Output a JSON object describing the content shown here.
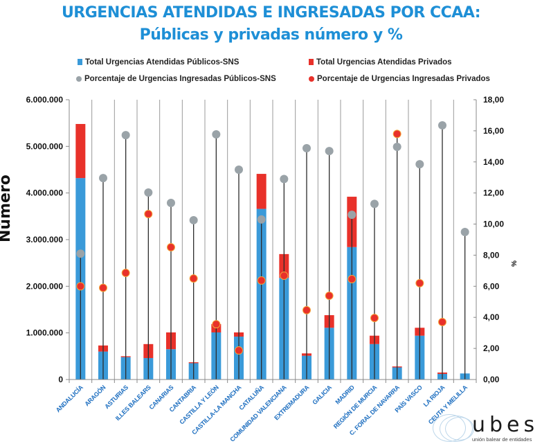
{
  "title_line1": "URGENCIAS ATENDIDAS E INGRESADAS POR CCAA:",
  "title_line2": "Públicas y privadas número y %",
  "logo": {
    "word": "ubes",
    "subtitle": "unión balear de entidades"
  },
  "colors": {
    "public_bar": "#3a9ad9",
    "private_bar": "#e8312a",
    "public_pct": "#9aa3a8",
    "private_pct": "#e8312a",
    "axis_label": "#1e6fc0",
    "title": "#1e8fd6"
  },
  "chart_data": {
    "type": "bar",
    "stacked": true,
    "title": "URGENCIAS ATENDIDAS E INGRESADAS POR CCAA: Públicas y privadas número y %",
    "xlabel": "",
    "ylabel": "Número",
    "y2label": "%",
    "ylim": [
      0,
      6000000
    ],
    "y2lim": [
      0,
      18
    ],
    "yticks": [
      "0",
      "1.000.000",
      "2.000.000",
      "3.000.000",
      "4.000.000",
      "5.000.000",
      "6.000.000"
    ],
    "y2ticks": [
      "0,00",
      "2,00",
      "4,00",
      "6,00",
      "8,00",
      "10,00",
      "12,00",
      "14,00",
      "16,00",
      "18,00"
    ],
    "legend_position": "top",
    "categories": [
      "ANDALUCÍA",
      "ARAGÓN",
      "ASTURIAS",
      "ILLES BALEARS",
      "CANARIAS",
      "CANTABRIA",
      "CASTILLA Y LEÓN",
      "CASTILLA-LA MANCHA",
      "CATALUÑA",
      "COMUNIDAD VALENCIANA",
      "EXTREMADURA",
      "GALICIA",
      "MADRID",
      "REGIÓN DE MURCIA",
      "C. FORAL DE NAVARRA",
      "PAÍS VASCO",
      "LA RIOJA",
      "CEUTA Y MELILLA"
    ],
    "series": [
      {
        "name": "Total Urgencias Atendidas Públicos-SNS",
        "type": "bar",
        "axis": "left",
        "values": [
          4320000,
          600000,
          480000,
          460000,
          650000,
          350000,
          1010000,
          920000,
          3660000,
          2180000,
          510000,
          1110000,
          2840000,
          760000,
          260000,
          940000,
          120000,
          130000
        ]
      },
      {
        "name": "Total Urgencias Atendidas Privados",
        "type": "bar",
        "axis": "left",
        "values": [
          1160000,
          130000,
          20000,
          300000,
          360000,
          20000,
          180000,
          90000,
          750000,
          510000,
          50000,
          270000,
          1080000,
          180000,
          20000,
          170000,
          30000,
          0
        ]
      },
      {
        "name": "Porcentaje de Urgencias Ingresadas Públicos-SNS",
        "type": "scatter",
        "axis": "right",
        "values": [
          8.1,
          12.96,
          15.72,
          12.03,
          11.36,
          10.25,
          15.77,
          13.5,
          10.3,
          12.9,
          14.88,
          14.7,
          10.6,
          11.3,
          14.97,
          13.85,
          16.35,
          9.49
        ]
      },
      {
        "name": "Porcentaje de Urgencias Ingresadas Privados",
        "type": "scatter",
        "axis": "right",
        "values": [
          6.0,
          5.9,
          6.86,
          10.65,
          8.51,
          6.5,
          3.56,
          1.87,
          6.37,
          6.68,
          4.46,
          5.39,
          6.46,
          3.96,
          15.8,
          6.2,
          3.7,
          null
        ]
      }
    ]
  }
}
